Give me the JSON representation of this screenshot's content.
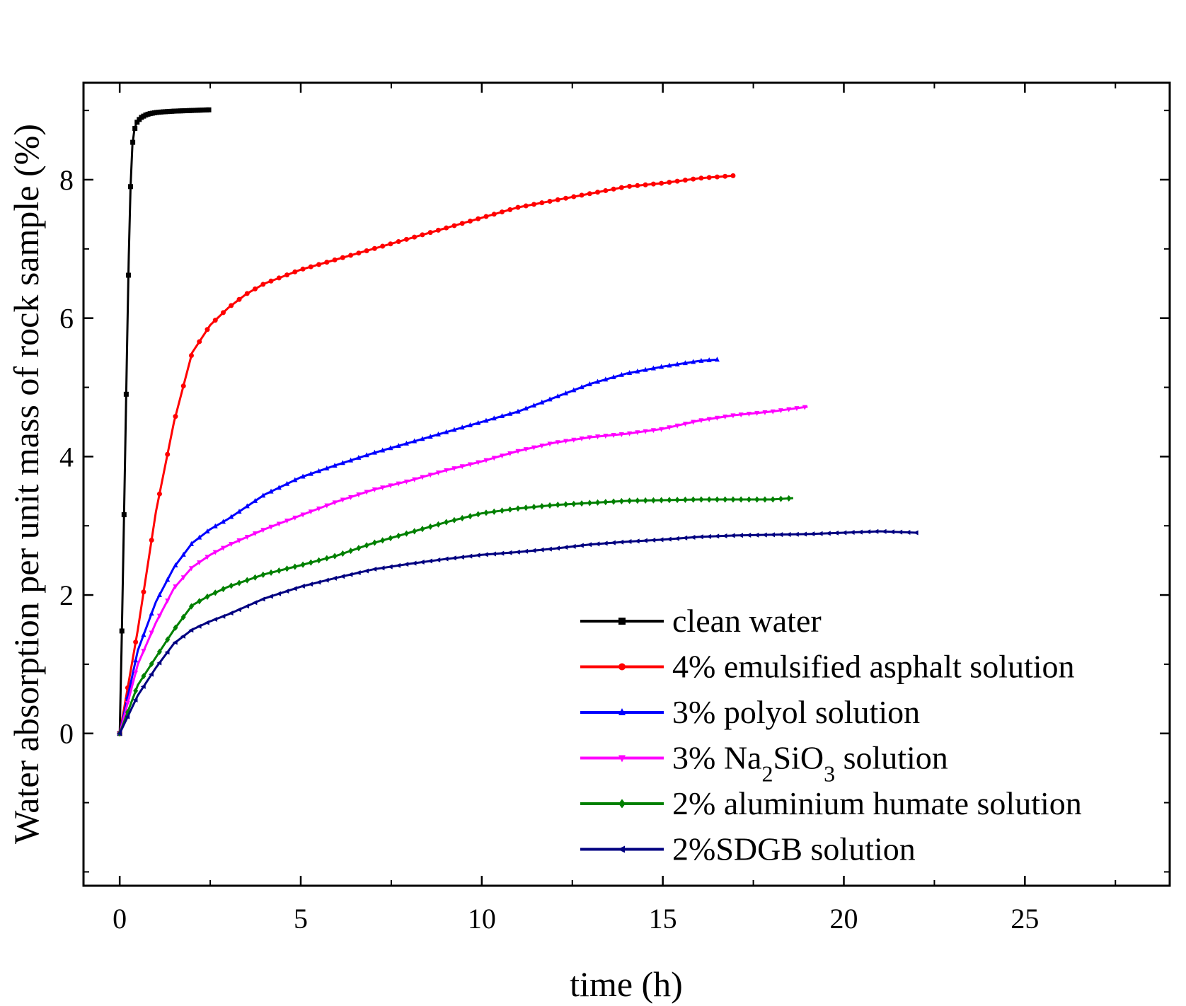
{
  "chart_data": {
    "type": "line",
    "title": "",
    "xlabel": "time (h)",
    "ylabel": "Water absorption per unit mass of rock sample (%)",
    "xlim": [
      -1,
      29
    ],
    "ylim": [
      -2.2,
      9.4
    ],
    "xticks": [
      0,
      5,
      10,
      15,
      20,
      25
    ],
    "xtick_labels": [
      "0",
      "5",
      "10",
      "15",
      "20",
      "25"
    ],
    "yticks": [
      0,
      2,
      4,
      6,
      8
    ],
    "ytick_labels": [
      "0",
      "2",
      "4",
      "6",
      "8"
    ],
    "grid": false,
    "legend_position": "bottom-right",
    "series": [
      {
        "name": "clean water",
        "label_parts": [
          {
            "text": "clean water"
          }
        ],
        "color": "#000000",
        "marker": "square",
        "x": [
          0,
          0.05,
          0.1,
          0.15,
          0.2,
          0.25,
          0.3,
          0.35,
          0.4,
          0.45,
          0.5,
          0.6,
          0.7,
          0.8,
          1.0,
          1.2,
          1.5,
          2.0,
          2.5
        ],
        "y": [
          0,
          1.2,
          2.6,
          4.0,
          5.5,
          6.9,
          7.9,
          8.5,
          8.7,
          8.8,
          8.85,
          8.9,
          8.93,
          8.95,
          8.97,
          8.98,
          8.99,
          9.0,
          9.01
        ]
      },
      {
        "name": "4% emulsified asphalt solution",
        "label_parts": [
          {
            "text": "4% emulsified asphalt solution"
          }
        ],
        "color": "#ff0000",
        "marker": "circle",
        "x": [
          0,
          0.5,
          1.0,
          1.5,
          2.0,
          2.5,
          3.0,
          3.5,
          4.0,
          5.0,
          6.0,
          7.0,
          8.0,
          9.0,
          10.0,
          11.0,
          12.0,
          13.0,
          14.0,
          15.0,
          16.0,
          17.0
        ],
        "y": [
          0,
          1.5,
          3.2,
          4.5,
          5.5,
          5.9,
          6.15,
          6.35,
          6.5,
          6.7,
          6.85,
          7.0,
          7.15,
          7.3,
          7.45,
          7.6,
          7.7,
          7.8,
          7.9,
          7.95,
          8.02,
          8.06
        ]
      },
      {
        "name": "3% polyol solution",
        "label_parts": [
          {
            "text": "3% polyol solution"
          }
        ],
        "color": "#0000ff",
        "marker": "triangle-up",
        "x": [
          0,
          0.5,
          1.0,
          1.5,
          2.0,
          2.5,
          3.0,
          4.0,
          5.0,
          6.0,
          7.0,
          8.0,
          9.0,
          10.0,
          11.0,
          12.0,
          13.0,
          14.0,
          15.0,
          16.0,
          16.5
        ],
        "y": [
          0,
          1.2,
          1.9,
          2.4,
          2.75,
          2.95,
          3.1,
          3.45,
          3.7,
          3.88,
          4.05,
          4.2,
          4.35,
          4.5,
          4.65,
          4.85,
          5.05,
          5.2,
          5.3,
          5.38,
          5.4
        ]
      },
      {
        "name": "3% Na2SiO3 solution",
        "label_parts": [
          {
            "text": "3% Na"
          },
          {
            "text": "2",
            "sub": true
          },
          {
            "text": "SiO"
          },
          {
            "text": "3",
            "sub": true
          },
          {
            "text": " solution"
          }
        ],
        "color": "#ff00ff",
        "marker": "triangle-down",
        "x": [
          0,
          0.5,
          1.0,
          1.5,
          2.0,
          2.5,
          3.0,
          4.0,
          5.0,
          6.0,
          7.0,
          8.0,
          9.0,
          10.0,
          11.0,
          12.0,
          13.0,
          14.0,
          15.0,
          16.0,
          17.0,
          18.0,
          19.0
        ],
        "y": [
          0,
          1.0,
          1.6,
          2.1,
          2.4,
          2.58,
          2.72,
          2.95,
          3.15,
          3.35,
          3.52,
          3.65,
          3.8,
          3.93,
          4.08,
          4.2,
          4.28,
          4.33,
          4.4,
          4.52,
          4.6,
          4.65,
          4.72
        ]
      },
      {
        "name": "2% aluminium humate solution",
        "label_parts": [
          {
            "text": "2% aluminium humate solution"
          }
        ],
        "color": "#008000",
        "marker": "diamond",
        "x": [
          0,
          0.5,
          1.0,
          1.5,
          2.0,
          2.5,
          3.0,
          4.0,
          5.0,
          6.0,
          7.0,
          8.0,
          9.0,
          10.0,
          11.0,
          12.0,
          13.0,
          14.0,
          15.0,
          16.0,
          17.0,
          18.0,
          18.6
        ],
        "y": [
          0,
          0.7,
          1.1,
          1.5,
          1.85,
          2.0,
          2.12,
          2.3,
          2.43,
          2.57,
          2.75,
          2.9,
          3.05,
          3.18,
          3.25,
          3.3,
          3.33,
          3.36,
          3.37,
          3.38,
          3.38,
          3.38,
          3.4
        ]
      },
      {
        "name": "2%SDGB solution",
        "label_parts": [
          {
            "text": "2%SDGB solution"
          }
        ],
        "color": "#000080",
        "marker": "triangle-left",
        "x": [
          0,
          0.5,
          1.0,
          1.5,
          2.0,
          2.5,
          3.0,
          4.0,
          5.0,
          6.0,
          7.0,
          8.0,
          9.0,
          10.0,
          11.0,
          12.0,
          13.0,
          14.0,
          15.0,
          16.0,
          17.0,
          18.0,
          19.0,
          20.0,
          21.0,
          22.0
        ],
        "y": [
          0,
          0.55,
          0.95,
          1.3,
          1.5,
          1.62,
          1.72,
          1.95,
          2.12,
          2.25,
          2.37,
          2.45,
          2.52,
          2.58,
          2.62,
          2.67,
          2.73,
          2.77,
          2.8,
          2.84,
          2.86,
          2.87,
          2.88,
          2.9,
          2.92,
          2.9
        ]
      }
    ]
  }
}
